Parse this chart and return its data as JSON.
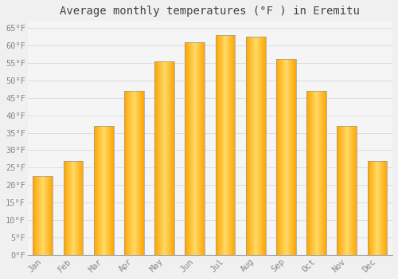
{
  "title": "Average monthly temperatures (°F ) in Eremitu",
  "months": [
    "Jan",
    "Feb",
    "Mar",
    "Apr",
    "May",
    "Jun",
    "Jul",
    "Aug",
    "Sep",
    "Oct",
    "Nov",
    "Dec"
  ],
  "values": [
    22.5,
    27.0,
    37.0,
    47.0,
    55.5,
    61.0,
    63.0,
    62.5,
    56.0,
    47.0,
    37.0,
    27.0
  ],
  "bar_color_center": "#FFD966",
  "bar_color_edge": "#FFA500",
  "background_color": "#F0F0F0",
  "plot_bg_color": "#F5F5F5",
  "grid_color": "#DDDDDD",
  "ylim": [
    0,
    67
  ],
  "yticks": [
    0,
    5,
    10,
    15,
    20,
    25,
    30,
    35,
    40,
    45,
    50,
    55,
    60,
    65
  ],
  "title_fontsize": 10,
  "tick_fontsize": 7.5,
  "tick_color": "#888888",
  "title_color": "#444444",
  "font_family": "monospace",
  "bar_width": 0.65
}
